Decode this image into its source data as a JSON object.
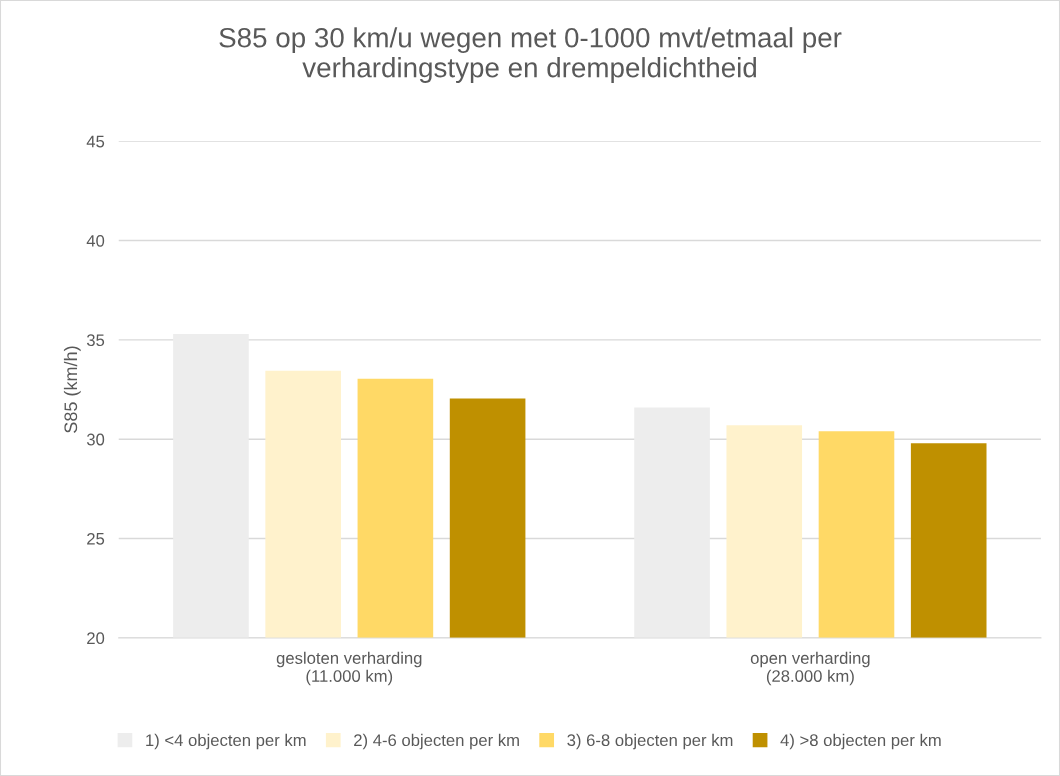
{
  "chart_data": {
    "type": "bar",
    "title": "S85 op 30 km/u wegen met 0-1000 mvt/etmaal per\nverhardingstype en drempeldichtheid",
    "ylabel": "S85 (km/h)",
    "categories": [
      "gesloten verharding\n(11.000 km)",
      "open verharding\n(28.000 km)"
    ],
    "series": [
      {
        "name": "1) <4 objecten per km",
        "color": "#ededed",
        "values": [
          35.3,
          31.6
        ]
      },
      {
        "name": "2) 4-6 objecten per km",
        "color": "#fff2cc",
        "values": [
          33.45,
          30.7
        ]
      },
      {
        "name": "3) 6-8 objecten per km",
        "color": "#ffd966",
        "values": [
          33.05,
          30.4
        ]
      },
      {
        "name": "4) >8 objecten per km",
        "color": "#bf9000",
        "values": [
          32.05,
          29.8
        ]
      }
    ],
    "ylim": [
      20,
      45
    ],
    "yticks": [
      20,
      25,
      30,
      35,
      40,
      45
    ],
    "grid": "y",
    "legend": "bottom"
  }
}
